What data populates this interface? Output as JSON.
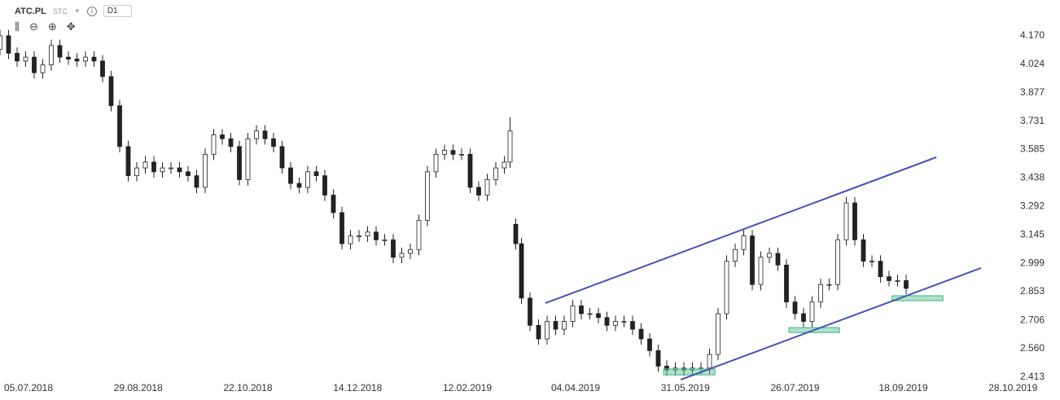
{
  "header": {
    "symbol": "ATC.PL",
    "mode": "STC",
    "interval": "D1"
  },
  "chart_data": {
    "type": "candlestick",
    "x": [
      0,
      3,
      6,
      9,
      12,
      15,
      18,
      21,
      24,
      27,
      30,
      33,
      36,
      39,
      42,
      45,
      48,
      51,
      54,
      57,
      60,
      63,
      66,
      69,
      72,
      75,
      78,
      81,
      84,
      87,
      90,
      93,
      96,
      99,
      102,
      105,
      108,
      111,
      114,
      117,
      120,
      123,
      126,
      129,
      132,
      135,
      138,
      141,
      144,
      147,
      150,
      153,
      156,
      159,
      162,
      165,
      168,
      171,
      174,
      177,
      179,
      181,
      183,
      186,
      189,
      192,
      195,
      198,
      201,
      204,
      207,
      210,
      213,
      216,
      219,
      222,
      225,
      228,
      231,
      234,
      237,
      240,
      243,
      246,
      249,
      252,
      255,
      258,
      261,
      264,
      267,
      270,
      273,
      276,
      279,
      282,
      285,
      288,
      291,
      294,
      297,
      300,
      303,
      306,
      309,
      312,
      315,
      318
    ],
    "open": [
      4.1,
      4.17,
      4.08,
      4.04,
      4.06,
      3.98,
      4.02,
      4.12,
      4.06,
      4.05,
      4.04,
      4.06,
      4.04,
      3.96,
      3.81,
      3.6,
      3.45,
      3.49,
      3.52,
      3.47,
      3.49,
      3.49,
      3.47,
      3.45,
      3.39,
      3.56,
      3.66,
      3.64,
      3.6,
      3.43,
      3.64,
      3.68,
      3.64,
      3.6,
      3.49,
      3.41,
      3.39,
      3.47,
      3.45,
      3.35,
      3.26,
      3.1,
      3.14,
      3.14,
      3.16,
      3.12,
      3.12,
      3.03,
      3.05,
      3.07,
      3.22,
      3.47,
      3.56,
      3.58,
      3.56,
      3.56,
      3.39,
      3.35,
      3.43,
      3.49,
      3.52,
      3.2,
      3.1,
      2.82,
      2.68,
      2.61,
      2.7,
      2.66,
      2.7,
      2.78,
      2.74,
      2.74,
      2.72,
      2.68,
      2.7,
      2.7,
      2.66,
      2.61,
      2.55,
      2.47,
      2.45,
      2.46,
      2.45,
      2.46,
      2.46,
      2.53,
      2.74,
      3.01,
      3.07,
      3.14,
      2.89,
      3.03,
      3.05,
      2.99,
      2.8,
      2.74,
      2.7,
      2.8,
      2.89,
      2.89,
      3.12,
      3.31,
      3.12,
      3.01,
      3.01,
      2.93,
      2.91,
      2.91
    ],
    "high": [
      4.2,
      4.2,
      4.11,
      4.09,
      4.09,
      4.05,
      4.15,
      4.15,
      4.09,
      4.08,
      4.09,
      4.09,
      4.07,
      3.99,
      3.84,
      3.63,
      3.52,
      3.55,
      3.55,
      3.52,
      3.52,
      3.52,
      3.5,
      3.48,
      3.59,
      3.69,
      3.69,
      3.67,
      3.63,
      3.67,
      3.71,
      3.71,
      3.67,
      3.63,
      3.52,
      3.44,
      3.5,
      3.5,
      3.48,
      3.38,
      3.29,
      3.17,
      3.17,
      3.19,
      3.19,
      3.15,
      3.15,
      3.08,
      3.1,
      3.25,
      3.5,
      3.59,
      3.61,
      3.61,
      3.59,
      3.59,
      3.42,
      3.46,
      3.52,
      3.55,
      3.75,
      3.23,
      3.13,
      2.85,
      2.71,
      2.73,
      2.73,
      2.73,
      2.81,
      2.81,
      2.77,
      2.77,
      2.75,
      2.73,
      2.73,
      2.73,
      2.69,
      2.64,
      2.58,
      2.5,
      2.49,
      2.49,
      2.49,
      2.49,
      2.56,
      2.77,
      3.04,
      3.1,
      3.17,
      3.17,
      3.06,
      3.08,
      3.08,
      3.02,
      2.83,
      2.77,
      2.83,
      2.92,
      2.92,
      3.15,
      3.34,
      3.34,
      3.15,
      3.04,
      3.04,
      2.96,
      2.94,
      2.94
    ],
    "low": [
      4.07,
      4.05,
      4.01,
      4.01,
      3.95,
      3.95,
      3.99,
      4.03,
      4.02,
      4.01,
      4.01,
      4.01,
      3.93,
      3.78,
      3.57,
      3.42,
      3.42,
      3.46,
      3.44,
      3.44,
      3.46,
      3.44,
      3.42,
      3.36,
      3.36,
      3.53,
      3.61,
      3.57,
      3.4,
      3.4,
      3.61,
      3.61,
      3.57,
      3.46,
      3.38,
      3.36,
      3.36,
      3.42,
      3.32,
      3.23,
      3.07,
      3.07,
      3.11,
      3.11,
      3.09,
      3.09,
      3.0,
      3.0,
      3.02,
      3.04,
      3.19,
      3.44,
      3.53,
      3.53,
      3.53,
      3.36,
      3.32,
      3.32,
      3.4,
      3.46,
      3.49,
      3.07,
      2.79,
      2.65,
      2.58,
      2.58,
      2.63,
      2.63,
      2.67,
      2.71,
      2.71,
      2.69,
      2.65,
      2.65,
      2.67,
      2.63,
      2.58,
      2.52,
      2.44,
      2.42,
      2.42,
      2.42,
      2.42,
      2.43,
      2.43,
      2.5,
      2.71,
      2.98,
      3.04,
      2.86,
      2.86,
      3.0,
      2.96,
      2.77,
      2.71,
      2.67,
      2.67,
      2.77,
      2.86,
      2.86,
      3.09,
      3.09,
      2.98,
      2.98,
      2.9,
      2.88,
      2.88,
      2.84
    ],
    "close": [
      4.17,
      4.08,
      4.04,
      4.06,
      3.98,
      4.02,
      4.12,
      4.06,
      4.05,
      4.04,
      4.06,
      4.04,
      3.96,
      3.81,
      3.6,
      3.45,
      3.49,
      3.52,
      3.47,
      3.49,
      3.49,
      3.47,
      3.45,
      3.39,
      3.56,
      3.66,
      3.64,
      3.6,
      3.43,
      3.64,
      3.68,
      3.64,
      3.6,
      3.49,
      3.41,
      3.39,
      3.47,
      3.45,
      3.35,
      3.26,
      3.1,
      3.14,
      3.14,
      3.16,
      3.12,
      3.12,
      3.03,
      3.05,
      3.07,
      3.22,
      3.47,
      3.56,
      3.58,
      3.56,
      3.56,
      3.39,
      3.35,
      3.43,
      3.49,
      3.52,
      3.68,
      3.1,
      2.82,
      2.68,
      2.61,
      2.7,
      2.66,
      2.7,
      2.78,
      2.74,
      2.74,
      2.72,
      2.68,
      2.7,
      2.7,
      2.66,
      2.61,
      2.55,
      2.47,
      2.45,
      2.46,
      2.45,
      2.46,
      2.46,
      2.53,
      2.74,
      3.01,
      3.07,
      3.14,
      2.89,
      3.03,
      3.05,
      2.99,
      2.8,
      2.74,
      2.7,
      2.8,
      2.89,
      2.89,
      3.12,
      3.31,
      3.12,
      3.01,
      3.01,
      2.93,
      2.91,
      2.91,
      2.87
    ],
    "up_color": "#ffffff",
    "down_color": "#222222",
    "xlim": [
      0,
      372
    ],
    "ylim": [
      2.413,
      4.354
    ],
    "xticks": [
      {
        "value": 10,
        "label": "05.07.2018"
      },
      {
        "value": 48.5,
        "label": "29.08.2018"
      },
      {
        "value": 87,
        "label": "22.10.2018"
      },
      {
        "value": 125.5,
        "label": "14.12.2018"
      },
      {
        "value": 164,
        "label": "12.02.2019"
      },
      {
        "value": 202,
        "label": "04.04.2019"
      },
      {
        "value": 240.5,
        "label": "31.05.2019"
      },
      {
        "value": 279,
        "label": "26.07.2019"
      },
      {
        "value": 317,
        "label": "18.09.2019"
      },
      {
        "value": 355.5,
        "label": "28.10.2019"
      }
    ],
    "yticks": [
      {
        "value": 4.17,
        "label": "4.170"
      },
      4.024,
      3.877,
      3.731,
      3.585,
      3.438,
      3.292,
      3.145,
      2.999,
      2.853,
      2.706,
      {
        "value": 2.56,
        "label": "2.560"
      },
      2.413
    ],
    "trend_lines": [
      {
        "x": [
          191.4,
          328.6
        ],
        "y": [
          2.794,
          3.545
        ],
        "color": "#4a52b8"
      },
      {
        "x": [
          238.9,
          344.3
        ],
        "y": [
          2.4,
          2.975
        ],
        "color": "#4a52b8"
      }
    ],
    "zones": [
      {
        "x": [
          232.9,
          250.9
        ],
        "y": [
          2.425,
          2.455
        ],
        "color": "#4fbf8f"
      },
      {
        "x": [
          276.9,
          294.6
        ],
        "y": [
          2.643,
          2.668
        ],
        "color": "#4fbf8f"
      },
      {
        "x": [
          313.1,
          330.9
        ],
        "y": [
          2.807,
          2.832
        ],
        "color": "#4fbf8f"
      }
    ]
  }
}
